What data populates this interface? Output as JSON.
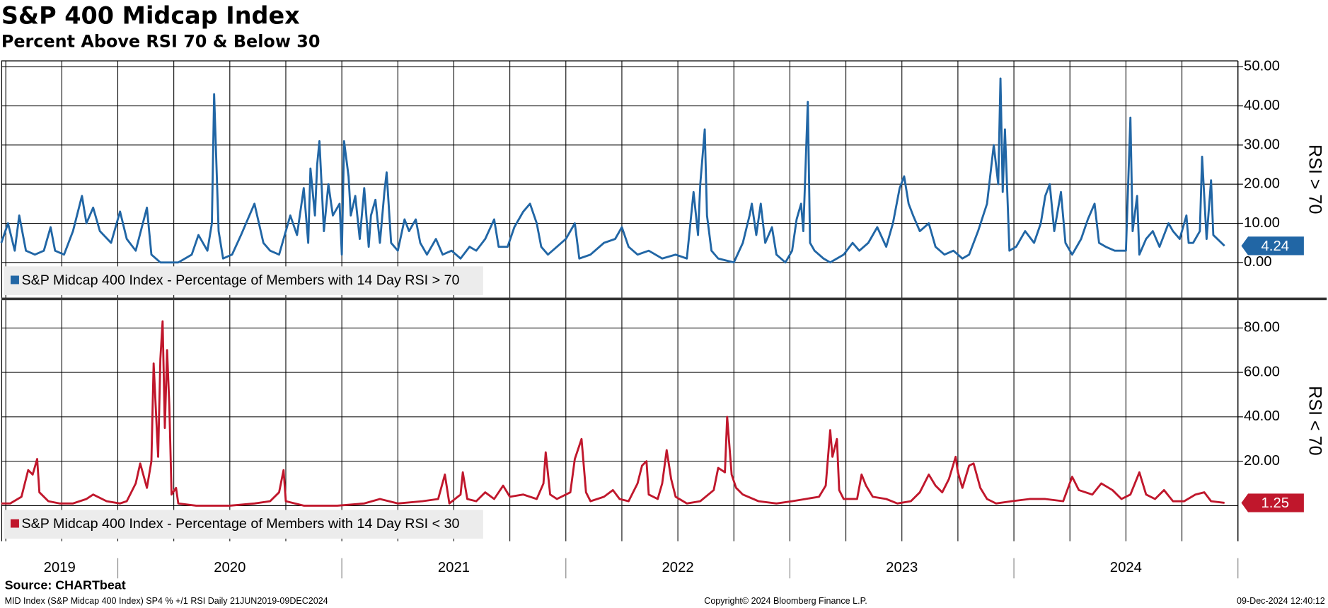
{
  "header": {
    "title": "S&P 400 Midcap Index",
    "subtitle": "Percent Above RSI 70 & Below 30"
  },
  "chart_data": [
    {
      "type": "line",
      "y_label": "RSI > 70",
      "grid": true,
      "legend": "lower left",
      "xlim": [
        2019.48,
        2025.0
      ],
      "xticks": [
        2019.5,
        2019.75,
        2020,
        2020.25,
        2020.5,
        2020.75,
        2021,
        2021.25,
        2021.5,
        2021.75,
        2022,
        2022.25,
        2022.5,
        2022.75,
        2023,
        2023.25,
        2023.5,
        2023.75,
        2024,
        2024.25,
        2024.5,
        2024.75
      ],
      "ylim": [
        -9,
        51.5
      ],
      "yticks": [
        {
          "value": 0,
          "label": "0.00"
        },
        {
          "value": 10,
          "label": "10.00"
        },
        {
          "value": 20,
          "label": "20.00"
        },
        {
          "value": 30,
          "label": "30.00"
        },
        {
          "value": 40,
          "label": "40.00"
        },
        {
          "value": 50,
          "label": "50.00"
        }
      ],
      "x": [
        2019.48,
        2019.51,
        2019.54,
        2019.56,
        2019.59,
        2019.63,
        2019.67,
        2019.7,
        2019.72,
        2019.76,
        2019.8,
        2019.84,
        2019.86,
        2019.89,
        2019.92,
        2019.97,
        2020.01,
        2020.04,
        2020.08,
        2020.13,
        2020.15,
        2020.19,
        2020.27,
        2020.33,
        2020.36,
        2020.4,
        2020.42,
        2020.43,
        2020.45,
        2020.47,
        2020.51,
        2020.55,
        2020.58,
        2020.61,
        2020.65,
        2020.68,
        2020.72,
        2020.77,
        2020.8,
        2020.83,
        2020.85,
        2020.86,
        2020.88,
        2020.89,
        2020.9,
        2020.92,
        2020.94,
        2020.96,
        2020.99,
        2021.0,
        2021.01,
        2021.03,
        2021.04,
        2021.06,
        2021.08,
        2021.1,
        2021.12,
        2021.13,
        2021.15,
        2021.17,
        2021.19,
        2021.2,
        2021.22,
        2021.25,
        2021.28,
        2021.3,
        2021.33,
        2021.35,
        2021.38,
        2021.42,
        2021.45,
        2021.49,
        2021.53,
        2021.57,
        2021.6,
        2021.64,
        2021.68,
        2021.7,
        2021.74,
        2021.77,
        2021.81,
        2021.84,
        2021.87,
        2021.89,
        2021.92,
        2021.96,
        2022.0,
        2022.04,
        2022.06,
        2022.11,
        2022.17,
        2022.22,
        2022.25,
        2022.28,
        2022.32,
        2022.37,
        2022.43,
        2022.49,
        2022.54,
        2022.57,
        2022.59,
        2022.6,
        2022.62,
        2022.63,
        2022.65,
        2022.68,
        2022.75,
        2022.79,
        2022.82,
        2022.83,
        2022.85,
        2022.87,
        2022.89,
        2022.92,
        2022.94,
        2022.98,
        2023.01,
        2023.03,
        2023.05,
        2023.06,
        2023.08,
        2023.09,
        2023.11,
        2023.15,
        2023.18,
        2023.24,
        2023.28,
        2023.31,
        2023.35,
        2023.39,
        2023.43,
        2023.46,
        2023.49,
        2023.51,
        2023.53,
        2023.55,
        2023.58,
        2023.62,
        2023.65,
        2023.69,
        2023.73,
        2023.77,
        2023.8,
        2023.84,
        2023.88,
        2023.91,
        2023.93,
        2023.94,
        2023.95,
        2023.96,
        2023.98,
        2024.01,
        2024.05,
        2024.09,
        2024.12,
        2024.14,
        2024.16,
        2024.18,
        2024.21,
        2024.23,
        2024.26,
        2024.3,
        2024.33,
        2024.36,
        2024.38,
        2024.41,
        2024.45,
        2024.48,
        2024.5,
        2024.52,
        2024.53,
        2024.55,
        2024.56,
        2024.59,
        2024.62,
        2024.65,
        2024.69,
        2024.71,
        2024.74,
        2024.77,
        2024.78,
        2024.8,
        2024.83,
        2024.84,
        2024.86,
        2024.88,
        2024.89,
        2024.94
      ],
      "series": [
        {
          "name": "S&P Midcap 400 Index - Percentage of Members with 14 Day RSI > 70",
          "color": "#2166a5",
          "values": [
            5,
            10,
            3,
            12,
            3,
            2,
            3,
            9,
            3,
            2,
            8,
            17,
            10,
            14,
            8,
            5,
            13,
            6,
            3,
            14,
            2,
            0,
            0,
            2,
            7,
            3,
            10,
            43,
            8,
            1,
            2,
            7,
            11,
            15,
            5,
            3,
            2,
            12,
            7,
            19,
            5,
            24,
            12,
            25,
            31,
            8,
            20,
            12,
            15,
            2,
            31,
            22,
            12,
            17,
            6,
            19,
            4,
            12,
            16,
            5,
            18,
            23,
            5,
            3,
            11,
            8,
            11,
            5,
            2,
            6,
            2,
            3,
            1,
            4,
            3,
            6,
            11,
            4,
            4,
            9,
            13,
            15,
            10,
            4,
            2,
            4,
            6,
            10,
            1,
            2,
            5,
            6,
            9,
            4,
            2,
            3,
            1,
            2,
            1,
            18,
            7,
            20,
            34,
            12,
            3,
            1,
            0,
            5,
            12,
            15,
            7,
            15,
            5,
            9,
            2,
            0,
            3,
            11,
            15,
            8,
            41,
            5,
            3,
            1,
            0,
            2,
            5,
            3,
            5,
            9,
            4,
            10,
            19,
            22,
            15,
            12,
            8,
            10,
            4,
            2,
            3,
            1,
            2,
            8,
            15,
            30,
            20,
            47,
            18,
            34,
            3,
            4,
            8,
            5,
            10,
            17,
            20,
            8,
            18,
            5,
            2,
            6,
            11,
            15,
            5,
            4,
            3,
            3,
            3,
            37,
            8,
            17,
            2,
            6,
            8,
            4,
            10,
            8,
            6,
            12,
            5,
            5,
            8,
            27,
            6,
            21,
            7,
            4.24
          ]
        }
      ]
    },
    {
      "type": "line",
      "y_label": "RSI < 70",
      "grid": true,
      "legend": "lower left",
      "xlim": [
        2019.48,
        2025.0
      ],
      "xticks": [
        2019.5,
        2019.75,
        2020,
        2020.25,
        2020.5,
        2020.75,
        2021,
        2021.25,
        2021.5,
        2021.75,
        2022,
        2022.25,
        2022.5,
        2022.75,
        2023,
        2023.25,
        2023.5,
        2023.75,
        2024,
        2024.25,
        2024.5,
        2024.75
      ],
      "ylim": [
        -16,
        92.5
      ],
      "yticks": [
        {
          "value": 20,
          "label": "20.00"
        },
        {
          "value": 40,
          "label": "40.00"
        },
        {
          "value": 60,
          "label": "60.00"
        },
        {
          "value": 80,
          "label": "80.00"
        }
      ],
      "zero_line": 0,
      "year_labels": [
        "2019",
        "2020",
        "2021",
        "2022",
        "2023",
        "2024"
      ],
      "year_ticks": [
        2020,
        2021,
        2022,
        2023,
        2024,
        2025
      ],
      "x": [
        2019.48,
        2019.52,
        2019.57,
        2019.6,
        2019.62,
        2019.64,
        2019.65,
        2019.69,
        2019.74,
        2019.8,
        2019.86,
        2019.89,
        2019.95,
        2020.01,
        2020.04,
        2020.08,
        2020.1,
        2020.13,
        2020.15,
        2020.16,
        2020.18,
        2020.19,
        2020.2,
        2020.21,
        2020.22,
        2020.23,
        2020.24,
        2020.26,
        2020.27,
        2020.35,
        2020.5,
        2020.61,
        2020.68,
        2020.72,
        2020.74,
        2020.75,
        2020.83,
        2020.98,
        2021.1,
        2021.17,
        2021.25,
        2021.36,
        2021.43,
        2021.46,
        2021.48,
        2021.53,
        2021.54,
        2021.56,
        2021.6,
        2021.64,
        2021.68,
        2021.72,
        2021.75,
        2021.81,
        2021.87,
        2021.9,
        2021.91,
        2021.93,
        2021.96,
        2022.02,
        2022.04,
        2022.07,
        2022.09,
        2022.11,
        2022.17,
        2022.21,
        2022.24,
        2022.28,
        2022.32,
        2022.34,
        2022.36,
        2022.37,
        2022.41,
        2022.43,
        2022.45,
        2022.47,
        2022.49,
        2022.54,
        2022.6,
        2022.66,
        2022.68,
        2022.71,
        2022.72,
        2022.74,
        2022.76,
        2022.79,
        2022.86,
        2022.94,
        2023.01,
        2023.07,
        2023.13,
        2023.16,
        2023.18,
        2023.19,
        2023.21,
        2023.22,
        2023.24,
        2023.3,
        2023.32,
        2023.34,
        2023.37,
        2023.43,
        2023.48,
        2023.54,
        2023.58,
        2023.62,
        2023.65,
        2023.68,
        2023.71,
        2023.74,
        2023.75,
        2023.77,
        2023.8,
        2023.82,
        2023.85,
        2023.88,
        2023.92,
        2023.99,
        2024.07,
        2024.14,
        2024.22,
        2024.26,
        2024.29,
        2024.35,
        2024.39,
        2024.44,
        2024.48,
        2024.52,
        2024.56,
        2024.59,
        2024.63,
        2024.67,
        2024.71,
        2024.76,
        2024.81,
        2024.85,
        2024.88,
        2024.94
      ],
      "series": [
        {
          "name": "S&P Midcap 400 Index - Percentage of Members with 14 Day RSI < 30",
          "color": "#c0172c",
          "values": [
            1,
            1,
            4,
            16,
            14,
            21,
            6,
            2,
            1,
            1,
            3,
            5,
            2,
            1,
            2,
            10,
            19,
            8,
            20,
            64,
            22,
            66,
            83,
            35,
            70,
            45,
            5,
            8,
            1,
            0,
            0,
            1,
            2,
            6,
            16,
            2,
            0,
            0,
            1,
            3,
            1,
            2,
            3,
            14,
            1,
            5,
            15,
            3,
            2,
            6,
            3,
            9,
            4,
            5,
            3,
            10,
            24,
            5,
            3,
            6,
            21,
            30,
            6,
            2,
            4,
            7,
            3,
            2,
            10,
            18,
            20,
            5,
            3,
            10,
            25,
            12,
            4,
            1,
            2,
            7,
            17,
            15,
            40,
            14,
            8,
            5,
            2,
            1,
            2,
            3,
            4,
            9,
            34,
            22,
            30,
            7,
            3,
            3,
            14,
            9,
            4,
            3,
            1,
            2,
            6,
            14,
            9,
            6,
            12,
            22,
            15,
            8,
            18,
            19,
            8,
            3,
            1,
            2,
            3,
            3,
            2,
            13,
            7,
            5,
            10,
            7,
            3,
            5,
            15,
            5,
            3,
            7,
            2,
            2,
            5,
            6,
            2,
            1.25
          ]
        }
      ]
    }
  ],
  "footer": {
    "source": "Source: CHARTbeat",
    "description": "MID Index (S&P Midcap 400 Index) SP4 % +/1 RSI  Daily 21JUN2019-09DEC2024",
    "copyright": "Copyright© 2024 Bloomberg Finance L.P.",
    "timestamp": "09-Dec-2024 12:40:12"
  }
}
